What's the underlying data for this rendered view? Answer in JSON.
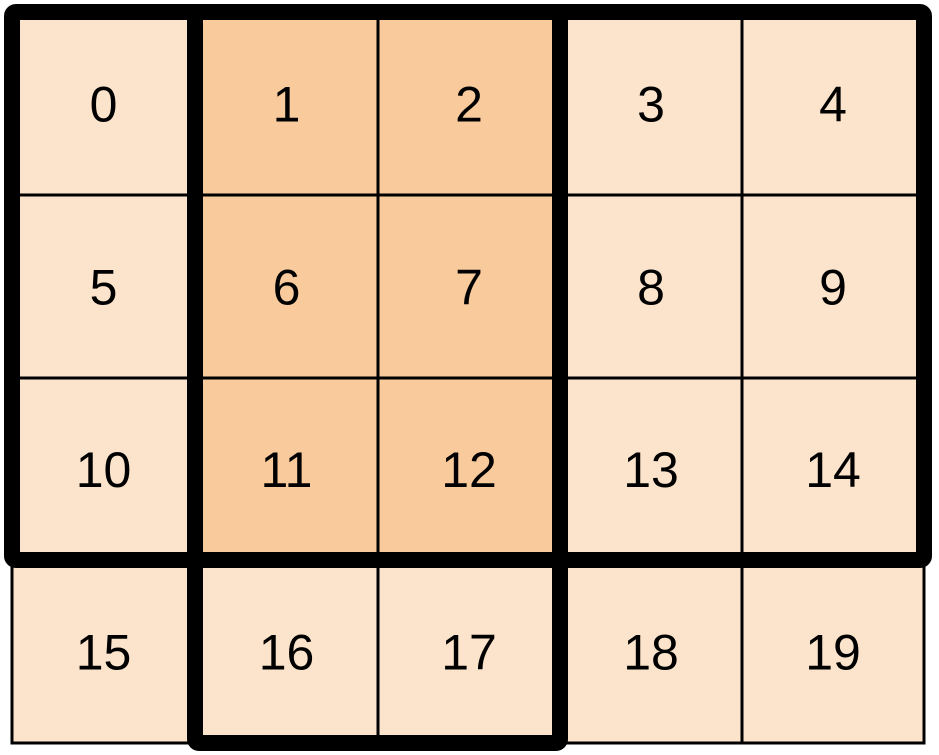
{
  "grid": {
    "rows": 4,
    "cols": 5,
    "labels": [
      "0",
      "1",
      "2",
      "3",
      "4",
      "5",
      "6",
      "7",
      "8",
      "9",
      "10",
      "11",
      "12",
      "13",
      "14",
      "15",
      "16",
      "17",
      "18",
      "19"
    ],
    "highlighted": [
      1,
      2,
      6,
      7,
      11,
      12
    ],
    "colors": {
      "cell": "#FBE4CB",
      "highlight": "#F8CA9C",
      "line": "#000000"
    },
    "thick_outlines": [
      {
        "rows": [
          0,
          2
        ],
        "cols": [
          0,
          4
        ]
      },
      {
        "rows": [
          0,
          3
        ],
        "cols": [
          1,
          2
        ]
      }
    ]
  }
}
